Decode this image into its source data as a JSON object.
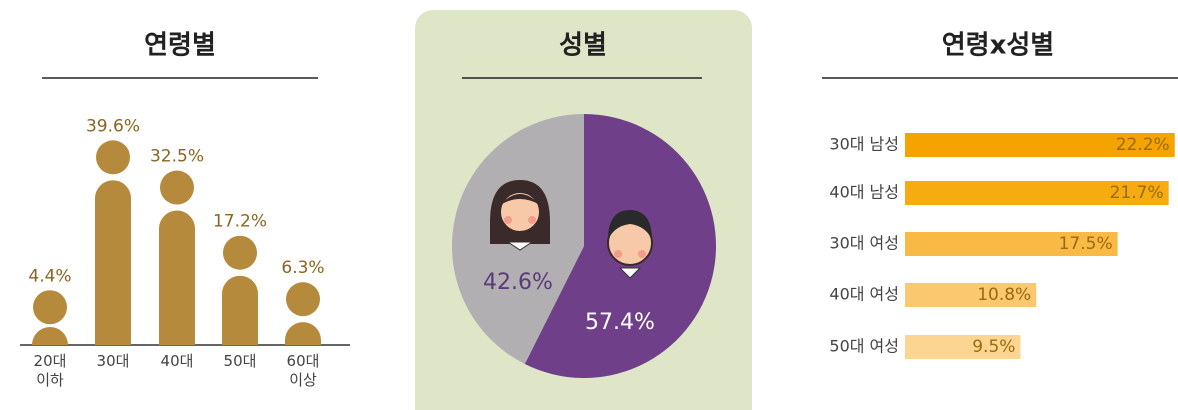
{
  "chart_data": [
    {
      "type": "bar",
      "title": "연령별",
      "categories": [
        "20대 이하",
        "30대",
        "40대",
        "50대",
        "60대 이상"
      ],
      "values": [
        4.4,
        39.6,
        32.5,
        17.2,
        6.3
      ],
      "value_labels": [
        "4.4%",
        "39.6%",
        "32.5%",
        "17.2%",
        "6.3%"
      ],
      "color": "#b58a3c"
    },
    {
      "type": "pie",
      "title": "성별",
      "categories": [
        null,
        null
      ],
      "values": [
        42.6,
        57.4
      ],
      "value_labels": [
        "42.6%",
        "57.4%"
      ],
      "colors": [
        "#b1afb1",
        "#6f3f89"
      ]
    },
    {
      "type": "hbar",
      "title": "연령x성별",
      "categories": [
        "30대 남성",
        "40대 남성",
        "30대 여성",
        "40대 여성",
        "50대 여성"
      ],
      "values": [
        22.2,
        21.7,
        17.5,
        10.8,
        9.5
      ],
      "value_labels": [
        "22.2%",
        "21.7%",
        "17.5%",
        "10.8%",
        "9.5%"
      ],
      "colors": [
        "#f5a300",
        "#f6ab10",
        "#f8ba45",
        "#fac86e",
        "#fcd590"
      ]
    }
  ]
}
